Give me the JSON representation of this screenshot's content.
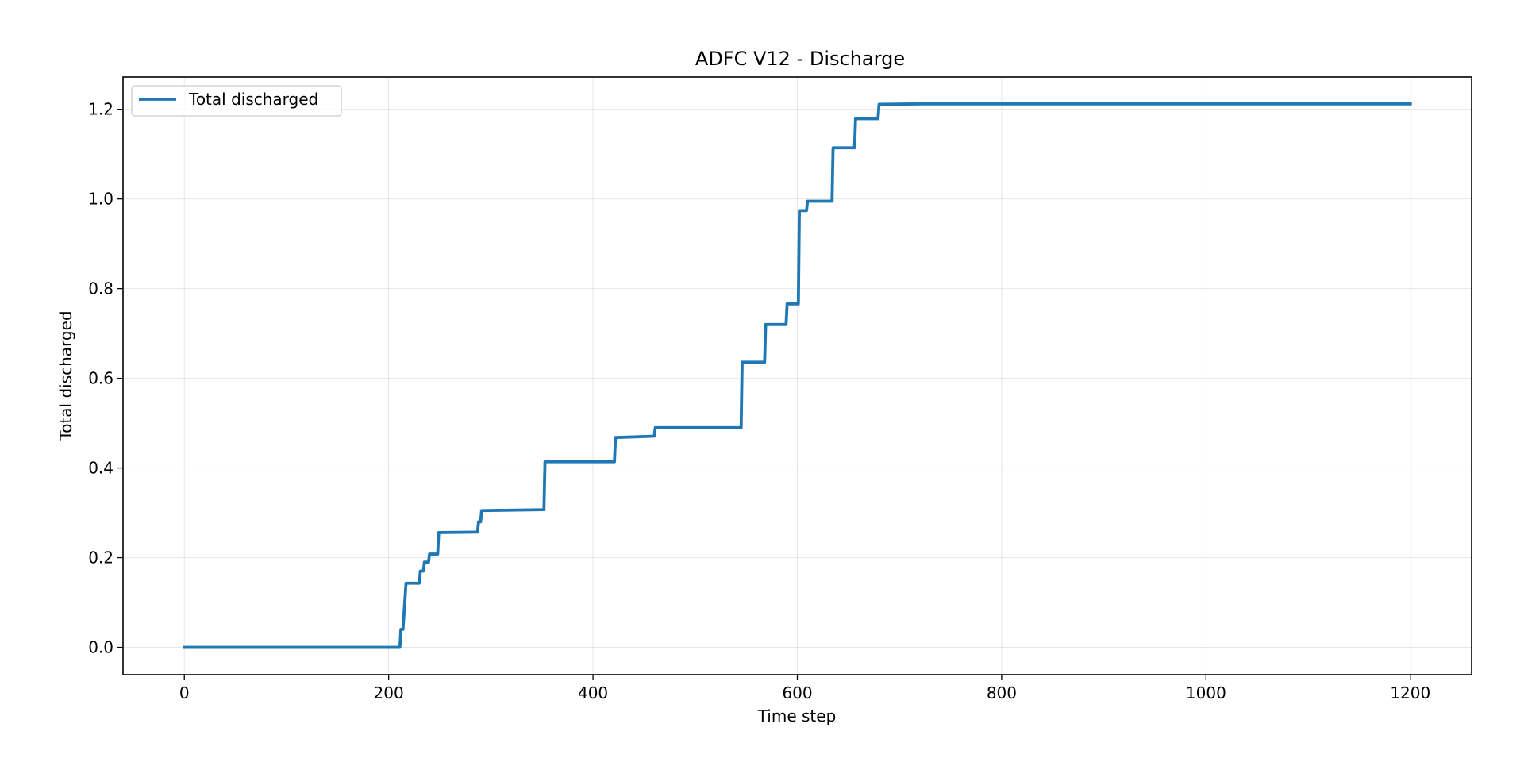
{
  "chart_data": {
    "type": "line",
    "title": "ADFC V12 - Discharge",
    "xlabel": "Time step",
    "ylabel": "Total discharged",
    "xlim": [
      -60,
      1260
    ],
    "ylim": [
      -0.061,
      1.272
    ],
    "xticks": [
      0,
      200,
      400,
      600,
      800,
      1000,
      1200
    ],
    "xtick_labels": [
      "0",
      "200",
      "400",
      "600",
      "800",
      "1000",
      "1200"
    ],
    "yticks": [
      0.0,
      0.2,
      0.4,
      0.6,
      0.8,
      1.0,
      1.2
    ],
    "ytick_labels": [
      "0.0",
      "0.2",
      "0.4",
      "0.6",
      "0.8",
      "1.0",
      "1.2"
    ],
    "grid": true,
    "legend_position": "upper-left",
    "color": "#1f77b4",
    "series": [
      {
        "name": "Total discharged",
        "x": [
          0,
          211,
          212,
          213,
          214,
          217,
          230,
          231,
          234,
          235,
          239,
          240,
          248,
          249,
          287,
          288,
          290,
          291,
          352,
          353,
          421,
          422,
          460,
          461,
          545,
          546,
          568,
          569,
          589,
          590,
          601,
          602,
          609,
          610,
          634,
          635,
          656,
          657,
          679,
          680,
          720,
          1200
        ],
        "y": [
          0.0,
          0.0,
          0.04,
          0.04,
          0.04,
          0.143,
          0.143,
          0.17,
          0.17,
          0.19,
          0.19,
          0.208,
          0.208,
          0.256,
          0.257,
          0.28,
          0.28,
          0.305,
          0.307,
          0.414,
          0.414,
          0.468,
          0.471,
          0.49,
          0.49,
          0.636,
          0.636,
          0.72,
          0.72,
          0.766,
          0.766,
          0.974,
          0.974,
          0.995,
          0.995,
          1.114,
          1.114,
          1.179,
          1.179,
          1.211,
          1.212,
          1.212
        ]
      }
    ]
  }
}
